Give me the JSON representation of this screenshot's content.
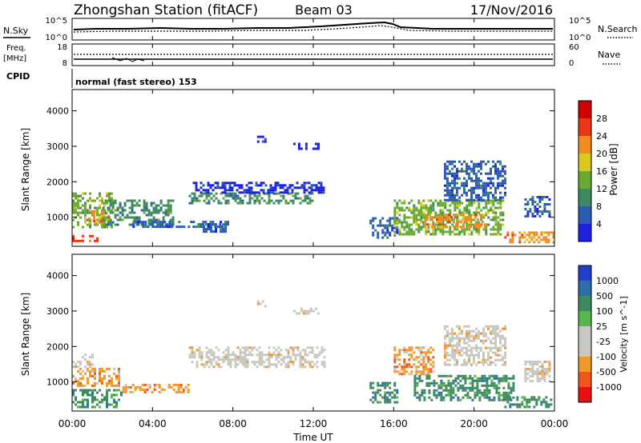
{
  "header": {
    "title": "Zhongshan Station (fitACF)",
    "beam": "Beam 03",
    "date": "17/Nov/2016"
  },
  "noise_panel": {
    "left_label": "N.Sky",
    "right_label": "N.Search",
    "left_ticks": [
      "10^5",
      "10^0"
    ],
    "right_ticks": [
      "10^5",
      "10^0"
    ]
  },
  "freq_panel": {
    "left_label_line1": "Freq.",
    "left_label_line2": "[MHz]",
    "right_label": "Nave",
    "left_ticks": [
      "18",
      "8"
    ],
    "right_ticks": [
      "60",
      "0"
    ]
  },
  "cpid": {
    "label": "CPID",
    "text": "normal (fast stereo) 153"
  },
  "x_axis": {
    "label": "Time UT",
    "ticks": [
      "00:00",
      "04:00",
      "08:00",
      "12:00",
      "16:00",
      "20:00",
      "00:00"
    ]
  },
  "colors": {
    "power_scale": [
      "#1f1fe0",
      "#2b5cb0",
      "#3f8a60",
      "#6aaa30",
      "#d8c820",
      "#f08c20",
      "#e83818",
      "#d00000"
    ],
    "velocity_scale": [
      "#e81010",
      "#f05818",
      "#f09828",
      "#c8c8c0",
      "#c8c8c0",
      "#55b848",
      "#3e8a60",
      "#2e6ea8",
      "#2040c8"
    ]
  },
  "chart_data": [
    {
      "type": "heatmap",
      "name": "power",
      "xlabel": "",
      "ylabel": "Slant Range [km]",
      "colorbar_label": "Power [dB]",
      "colorbar_ticks": [
        "28",
        "24",
        "20",
        "16",
        "12",
        "8",
        "4"
      ],
      "xlim": [
        0,
        24
      ],
      "ylim": [
        180,
        4600
      ],
      "y_ticks": [
        1000,
        2000,
        3000,
        4000
      ],
      "regions": [
        {
          "t0": 0.0,
          "t1": 1.2,
          "r0": 300,
          "r1": 500,
          "level": 6
        },
        {
          "t0": 0.0,
          "t1": 2.0,
          "r0": 700,
          "r1": 1700,
          "level": 3
        },
        {
          "t0": 0.8,
          "t1": 1.8,
          "r0": 800,
          "r1": 1200,
          "level": 5
        },
        {
          "t0": 1.5,
          "t1": 5.0,
          "r0": 800,
          "r1": 1500,
          "level": 2
        },
        {
          "t0": 3.0,
          "t1": 7.5,
          "r0": 700,
          "r1": 900,
          "level": 1
        },
        {
          "t0": 5.8,
          "t1": 12.0,
          "r0": 1400,
          "r1": 1700,
          "level": 2
        },
        {
          "t0": 6.0,
          "t1": 12.5,
          "r0": 1700,
          "r1": 2000,
          "level": 0
        },
        {
          "t0": 6.5,
          "t1": 7.8,
          "r0": 600,
          "r1": 900,
          "level": 1
        },
        {
          "t0": 9.2,
          "t1": 9.6,
          "r0": 3150,
          "r1": 3300,
          "level": 0
        },
        {
          "t0": 11.0,
          "t1": 12.3,
          "r0": 2900,
          "r1": 3100,
          "level": 0
        },
        {
          "t0": 14.8,
          "t1": 16.2,
          "r0": 400,
          "r1": 1000,
          "level": 1
        },
        {
          "t0": 16.0,
          "t1": 21.5,
          "r0": 500,
          "r1": 1500,
          "level": 3
        },
        {
          "t0": 17.5,
          "t1": 20.5,
          "r0": 700,
          "r1": 1100,
          "level": 5
        },
        {
          "t0": 18.5,
          "t1": 21.5,
          "r0": 1500,
          "r1": 2600,
          "level": 1
        },
        {
          "t0": 21.5,
          "t1": 23.9,
          "r0": 300,
          "r1": 600,
          "level": 5
        },
        {
          "t0": 22.5,
          "t1": 23.8,
          "r0": 1000,
          "r1": 1600,
          "level": 1
        }
      ]
    },
    {
      "type": "heatmap",
      "name": "velocity",
      "xlabel": "Time UT",
      "ylabel": "Slant Range [km]",
      "colorbar_label": "Velocity [m s^-1]",
      "colorbar_ticks": [
        "1000",
        "500",
        "100",
        "25",
        "-25",
        "-100",
        "-500",
        "-1000"
      ],
      "xlim": [
        0,
        24
      ],
      "ylim": [
        180,
        4600
      ],
      "y_ticks": [
        1000,
        2000,
        3000,
        4000
      ],
      "regions": [
        {
          "t0": 0.0,
          "t1": 2.5,
          "r0": 300,
          "r1": 800,
          "level": 6
        },
        {
          "t0": 0.0,
          "t1": 2.3,
          "r0": 900,
          "r1": 1400,
          "level": 2
        },
        {
          "t0": 0.0,
          "t1": 1.0,
          "r0": 1400,
          "r1": 1800,
          "level": 3
        },
        {
          "t0": 2.5,
          "t1": 5.8,
          "r0": 700,
          "r1": 950,
          "level": 2
        },
        {
          "t0": 5.8,
          "t1": 12.5,
          "r0": 1400,
          "r1": 2000,
          "level": 3
        },
        {
          "t0": 9.2,
          "t1": 9.6,
          "r0": 3150,
          "r1": 3300,
          "level": 3
        },
        {
          "t0": 11.0,
          "t1": 12.3,
          "r0": 2900,
          "r1": 3100,
          "level": 3
        },
        {
          "t0": 14.8,
          "t1": 16.2,
          "r0": 400,
          "r1": 1000,
          "level": 6
        },
        {
          "t0": 16.0,
          "t1": 18.0,
          "r0": 1200,
          "r1": 2000,
          "level": 2
        },
        {
          "t0": 17.0,
          "t1": 22.0,
          "r0": 500,
          "r1": 1200,
          "level": 6
        },
        {
          "t0": 18.5,
          "t1": 21.5,
          "r0": 1500,
          "r1": 2600,
          "level": 3
        },
        {
          "t0": 21.5,
          "t1": 23.9,
          "r0": 300,
          "r1": 600,
          "level": 6
        },
        {
          "t0": 22.5,
          "t1": 23.8,
          "r0": 1000,
          "r1": 1600,
          "level": 3
        }
      ]
    }
  ]
}
